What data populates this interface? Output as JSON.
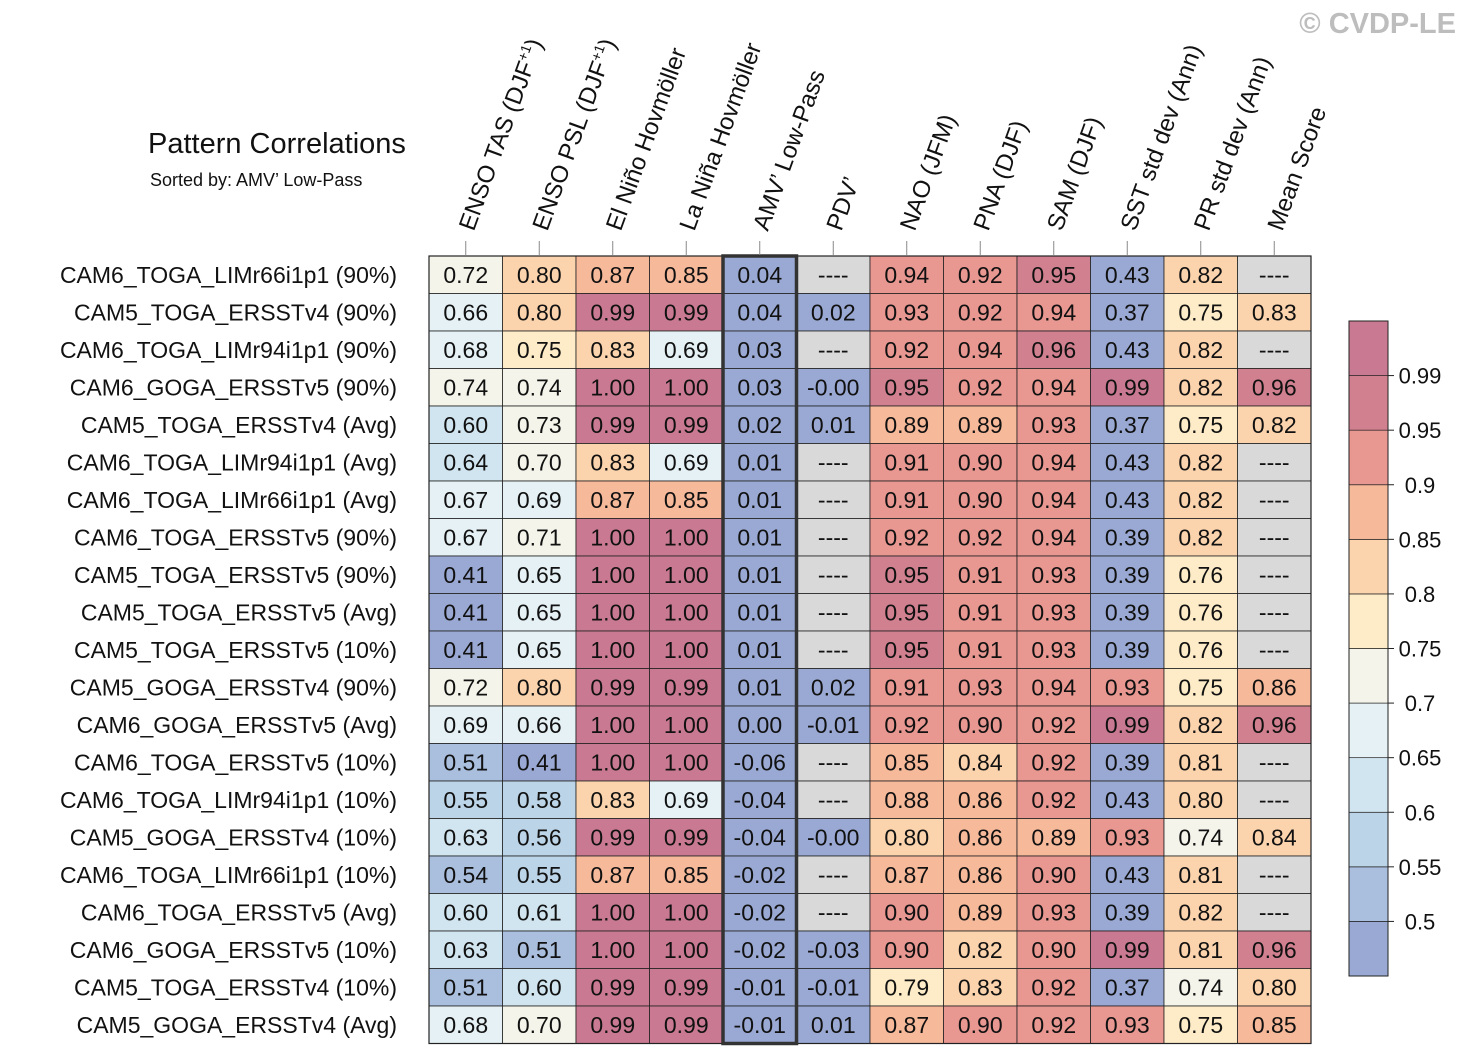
{
  "watermark": "© CVDP-LE",
  "chart_data": {
    "type": "heatmap",
    "title": "Pattern Correlations",
    "subtitle": "Sorted by: AMV’ Low-Pass",
    "highlight_column": 4,
    "columns": [
      {
        "base": "ENSO TAS (DJF",
        "sup": "+1",
        "tail": ")"
      },
      {
        "base": "ENSO PSL (DJF",
        "sup": "+1",
        "tail": ")"
      },
      {
        "base": "El Niño Hovmöller",
        "sup": "",
        "tail": ""
      },
      {
        "base": "La Niña Hovmöller",
        "sup": "",
        "tail": ""
      },
      {
        "base": "AMV’ Low-Pass",
        "sup": "",
        "tail": ""
      },
      {
        "base": "PDV’",
        "sup": "",
        "tail": ""
      },
      {
        "base": "NAO (JFM)",
        "sup": "",
        "tail": ""
      },
      {
        "base": "PNA (DJF)",
        "sup": "",
        "tail": ""
      },
      {
        "base": "SAM (DJF)",
        "sup": "",
        "tail": ""
      },
      {
        "base": "SST std dev (Ann)",
        "sup": "",
        "tail": ""
      },
      {
        "base": "PR std dev (Ann)",
        "sup": "",
        "tail": ""
      },
      {
        "base": "Mean Score",
        "sup": "",
        "tail": ""
      }
    ],
    "rows": [
      "CAM6_TOGA_LIMr66i1p1 (90%)",
      "CAM5_TOGA_ERSSTv4 (90%)",
      "CAM6_TOGA_LIMr94i1p1 (90%)",
      "CAM6_GOGA_ERSSTv5 (90%)",
      "CAM5_TOGA_ERSSTv4 (Avg)",
      "CAM6_TOGA_LIMr94i1p1 (Avg)",
      "CAM6_TOGA_LIMr66i1p1 (Avg)",
      "CAM6_TOGA_ERSSTv5 (90%)",
      "CAM5_TOGA_ERSSTv5 (90%)",
      "CAM5_TOGA_ERSSTv5 (Avg)",
      "CAM5_TOGA_ERSSTv5 (10%)",
      "CAM5_GOGA_ERSSTv4 (90%)",
      "CAM6_GOGA_ERSSTv5 (Avg)",
      "CAM6_TOGA_ERSSTv5 (10%)",
      "CAM6_TOGA_LIMr94i1p1 (10%)",
      "CAM5_GOGA_ERSSTv4 (10%)",
      "CAM6_TOGA_LIMr66i1p1 (10%)",
      "CAM6_TOGA_ERSSTv5 (Avg)",
      "CAM6_GOGA_ERSSTv5 (10%)",
      "CAM5_TOGA_ERSSTv4 (10%)",
      "CAM5_GOGA_ERSSTv4 (Avg)"
    ],
    "values": [
      [
        "0.72",
        "0.80",
        "0.87",
        "0.85",
        "0.04",
        "----",
        "0.94",
        "0.92",
        "0.95",
        "0.43",
        "0.82",
        "----"
      ],
      [
        "0.66",
        "0.80",
        "0.99",
        "0.99",
        "0.04",
        "0.02",
        "0.93",
        "0.92",
        "0.94",
        "0.37",
        "0.75",
        "0.83"
      ],
      [
        "0.68",
        "0.75",
        "0.83",
        "0.69",
        "0.03",
        "----",
        "0.92",
        "0.94",
        "0.96",
        "0.43",
        "0.82",
        "----"
      ],
      [
        "0.74",
        "0.74",
        "1.00",
        "1.00",
        "0.03",
        "-0.00",
        "0.95",
        "0.92",
        "0.94",
        "0.99",
        "0.82",
        "0.96"
      ],
      [
        "0.60",
        "0.73",
        "0.99",
        "0.99",
        "0.02",
        "0.01",
        "0.89",
        "0.89",
        "0.93",
        "0.37",
        "0.75",
        "0.82"
      ],
      [
        "0.64",
        "0.70",
        "0.83",
        "0.69",
        "0.01",
        "----",
        "0.91",
        "0.90",
        "0.94",
        "0.43",
        "0.82",
        "----"
      ],
      [
        "0.67",
        "0.69",
        "0.87",
        "0.85",
        "0.01",
        "----",
        "0.91",
        "0.90",
        "0.94",
        "0.43",
        "0.82",
        "----"
      ],
      [
        "0.67",
        "0.71",
        "1.00",
        "1.00",
        "0.01",
        "----",
        "0.92",
        "0.92",
        "0.94",
        "0.39",
        "0.82",
        "----"
      ],
      [
        "0.41",
        "0.65",
        "1.00",
        "1.00",
        "0.01",
        "----",
        "0.95",
        "0.91",
        "0.93",
        "0.39",
        "0.76",
        "----"
      ],
      [
        "0.41",
        "0.65",
        "1.00",
        "1.00",
        "0.01",
        "----",
        "0.95",
        "0.91",
        "0.93",
        "0.39",
        "0.76",
        "----"
      ],
      [
        "0.41",
        "0.65",
        "1.00",
        "1.00",
        "0.01",
        "----",
        "0.95",
        "0.91",
        "0.93",
        "0.39",
        "0.76",
        "----"
      ],
      [
        "0.72",
        "0.80",
        "0.99",
        "0.99",
        "0.01",
        "0.02",
        "0.91",
        "0.93",
        "0.94",
        "0.93",
        "0.75",
        "0.86"
      ],
      [
        "0.69",
        "0.66",
        "1.00",
        "1.00",
        "0.00",
        "-0.01",
        "0.92",
        "0.90",
        "0.92",
        "0.99",
        "0.82",
        "0.96"
      ],
      [
        "0.51",
        "0.41",
        "1.00",
        "1.00",
        "-0.06",
        "----",
        "0.85",
        "0.84",
        "0.92",
        "0.39",
        "0.81",
        "----"
      ],
      [
        "0.55",
        "0.58",
        "0.83",
        "0.69",
        "-0.04",
        "----",
        "0.88",
        "0.86",
        "0.92",
        "0.43",
        "0.80",
        "----"
      ],
      [
        "0.63",
        "0.56",
        "0.99",
        "0.99",
        "-0.04",
        "-0.00",
        "0.80",
        "0.86",
        "0.89",
        "0.93",
        "0.74",
        "0.84"
      ],
      [
        "0.54",
        "0.55",
        "0.87",
        "0.85",
        "-0.02",
        "----",
        "0.87",
        "0.86",
        "0.90",
        "0.43",
        "0.81",
        "----"
      ],
      [
        "0.60",
        "0.61",
        "1.00",
        "1.00",
        "-0.02",
        "----",
        "0.90",
        "0.89",
        "0.93",
        "0.39",
        "0.82",
        "----"
      ],
      [
        "0.63",
        "0.51",
        "1.00",
        "1.00",
        "-0.02",
        "-0.03",
        "0.90",
        "0.82",
        "0.90",
        "0.99",
        "0.81",
        "0.96"
      ],
      [
        "0.51",
        "0.60",
        "0.99",
        "0.99",
        "-0.01",
        "-0.01",
        "0.79",
        "0.83",
        "0.92",
        "0.37",
        "0.74",
        "0.80"
      ],
      [
        "0.68",
        "0.70",
        "0.99",
        "0.99",
        "-0.01",
        "0.01",
        "0.87",
        "0.90",
        "0.92",
        "0.93",
        "0.75",
        "0.85"
      ]
    ],
    "colorbar": {
      "levels": [
        0.5,
        0.55,
        0.6,
        0.65,
        0.7,
        0.75,
        0.8,
        0.85,
        0.9,
        0.95,
        0.99
      ],
      "tick_labels": [
        "0.5",
        "0.55",
        "0.6",
        "0.65",
        "0.7",
        "0.75",
        "0.8",
        "0.85",
        "0.9",
        "0.95",
        "0.99"
      ],
      "colors": [
        "#9aa9d3",
        "#aabfde",
        "#bcd4e7",
        "#d1e5f0",
        "#e5f1f5",
        "#f4f4ea",
        "#fdecc7",
        "#fbd4ad",
        "#f6b99a",
        "#e89791",
        "#d0808f",
        "#c97a92"
      ],
      "missing_color": "#d9d9d9",
      "border_color": "#222222"
    }
  }
}
